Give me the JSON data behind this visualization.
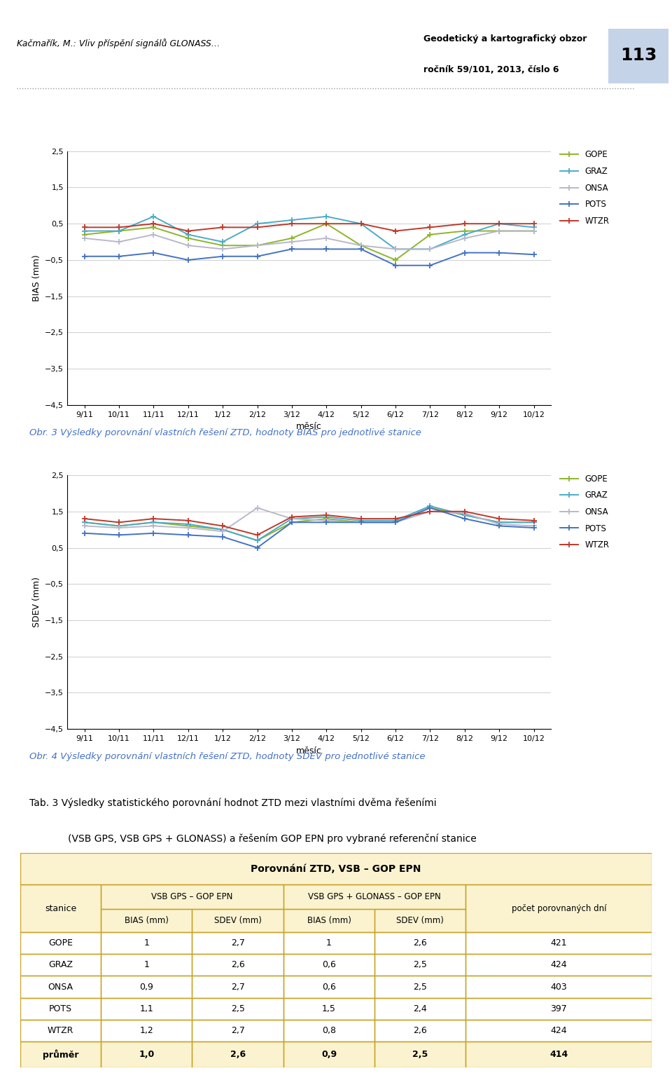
{
  "x_labels": [
    "9/11",
    "10/11",
    "11/11",
    "12/11",
    "1/12",
    "2/12",
    "3/12",
    "4/12",
    "5/12",
    "6/12",
    "7/12",
    "8/12",
    "9/12",
    "10/12"
  ],
  "x_xlabel": "měsíc",
  "bias_ylim": [
    -4.5,
    2.5
  ],
  "bias_yticks": [
    2.5,
    1.5,
    0.5,
    -0.5,
    -1.5,
    -2.5,
    -3.5,
    -4.5
  ],
  "sdev_ylim": [
    -4.5,
    2.5
  ],
  "sdev_yticks": [
    2.5,
    1.5,
    0.5,
    -0.5,
    -1.5,
    -2.5,
    -3.5,
    -4.5
  ],
  "bias_ylabel": "BIAS (mm)",
  "sdev_ylabel": "SDEV (mm)",
  "bias_data": {
    "GOPE": [
      0.2,
      0.3,
      0.4,
      0.1,
      -0.1,
      -0.1,
      0.1,
      0.5,
      -0.1,
      -0.5,
      0.2,
      0.3,
      0.3,
      0.3
    ],
    "GRAZ": [
      0.3,
      0.3,
      0.7,
      0.2,
      0.0,
      0.5,
      0.6,
      0.7,
      0.5,
      -0.2,
      -0.2,
      0.2,
      0.5,
      0.4
    ],
    "ONSA": [
      0.1,
      0.0,
      0.2,
      -0.1,
      -0.2,
      -0.1,
      0.0,
      0.1,
      -0.1,
      -0.2,
      -0.2,
      0.1,
      0.3,
      0.3
    ],
    "POTS": [
      -0.4,
      -0.4,
      -0.3,
      -0.5,
      -0.4,
      -0.4,
      -0.2,
      -0.2,
      -0.2,
      -0.65,
      -0.65,
      -0.3,
      -0.3,
      -0.35
    ],
    "WTZR": [
      0.4,
      0.4,
      0.5,
      0.3,
      0.4,
      0.4,
      0.5,
      0.5,
      0.5,
      0.3,
      0.4,
      0.5,
      0.5,
      0.5
    ]
  },
  "sdev_data": {
    "GOPE": [
      1.2,
      1.1,
      1.2,
      1.1,
      1.0,
      0.7,
      1.2,
      1.3,
      1.2,
      1.2,
      1.6,
      1.4,
      1.2,
      1.2
    ],
    "GRAZ": [
      1.2,
      1.1,
      1.2,
      1.15,
      1.0,
      0.7,
      1.3,
      1.35,
      1.25,
      1.25,
      1.65,
      1.4,
      1.2,
      1.2
    ],
    "ONSA": [
      1.1,
      1.05,
      1.1,
      1.05,
      0.95,
      1.6,
      1.3,
      1.25,
      1.2,
      1.2,
      1.5,
      1.45,
      1.15,
      1.1
    ],
    "POTS": [
      0.9,
      0.85,
      0.9,
      0.85,
      0.8,
      0.5,
      1.2,
      1.2,
      1.2,
      1.2,
      1.6,
      1.3,
      1.1,
      1.05
    ],
    "WTZR": [
      1.3,
      1.2,
      1.3,
      1.25,
      1.1,
      0.85,
      1.35,
      1.4,
      1.3,
      1.3,
      1.5,
      1.5,
      1.3,
      1.25
    ]
  },
  "colors": {
    "GOPE": "#8DB52A",
    "GRAZ": "#4BACC6",
    "ONSA": "#B8B8CC",
    "POTS": "#4472C4",
    "WTZR": "#C0392B"
  },
  "header_left": "Kačmařík, M.: Vliv příspění signálů GLONASS…",
  "header_right1": "Geodetický a kartografický obzor",
  "header_right2": "ročník 59/101, 2013, číslo 6",
  "page_num": "113",
  "caption1": "Obr. 3 Výsledky porovnání vlastních řešení ZTD, hodnoty BIAS pro jednotlivé stanice",
  "caption2": "Obr. 4 Výsledky porovnání vlastních řešení ZTD, hodnoty SDEV pro jednotlivé stanice",
  "tab_caption_line1": "Tab. 3 Výsledky statistického porovnání hodnot ZTD mezi vlastními dvěma řešeními",
  "tab_caption_line2": "(VSB GPS, VSB GPS + GLONASS) a řešením GOP EPN pro vybrané referenční stanice",
  "table_title": "Porovnání ZTD, VSB – GOP EPN",
  "table_col1_header": "stanice",
  "table_group1_header": "VSB GPS – GOP EPN",
  "table_group2_header": "VSB GPS + GLONASS – GOP EPN",
  "table_last_header": "počet porovnaných dní",
  "table_sub_headers": [
    "BIAS (mm)",
    "SDEV (mm)",
    "BIAS (mm)",
    "SDEV (mm)"
  ],
  "table_rows": [
    [
      "GOPE",
      "1",
      "2,7",
      "1",
      "2,6",
      "421"
    ],
    [
      "GRAZ",
      "1",
      "2,6",
      "0,6",
      "2,5",
      "424"
    ],
    [
      "ONSA",
      "0,9",
      "2,7",
      "0,6",
      "2,5",
      "403"
    ],
    [
      "POTS",
      "1,1",
      "2,5",
      "1,5",
      "2,4",
      "397"
    ],
    [
      "WTZR",
      "1,2",
      "2,7",
      "0,8",
      "2,6",
      "424"
    ]
  ],
  "table_avg_row": [
    "průměr",
    "1,0",
    "2,6",
    "0,9",
    "2,5",
    "414"
  ],
  "table_bg": "#FBF3D0",
  "border_color": "#C8A428",
  "dotted_color": "#999999"
}
